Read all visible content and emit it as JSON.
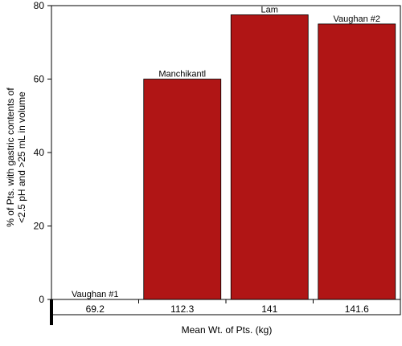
{
  "chart_data": {
    "type": "bar",
    "title": "",
    "xlabel": "Mean Wt. of Pts. (kg)",
    "ylabel_lines": [
      "% of Pts. with gastric contents of",
      "<2.5 pH and >25 mL in volume"
    ],
    "ylim": [
      0,
      80
    ],
    "yticks": [
      0,
      20,
      40,
      60,
      80
    ],
    "grid": false,
    "categories": [
      "69.2",
      "112.3",
      "141",
      "141.6"
    ],
    "values": [
      0,
      60,
      77.5,
      75
    ],
    "bar_labels": [
      "Vaughan #1",
      "Manchikantl",
      "Lam",
      "Vaughan #2"
    ],
    "bar_color": "#b01515"
  }
}
